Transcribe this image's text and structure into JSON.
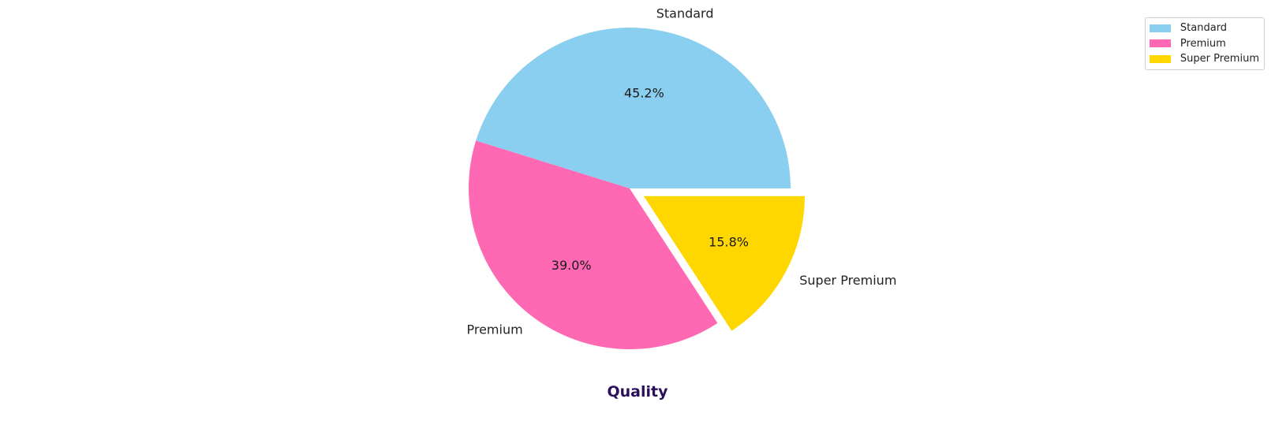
{
  "chart_data": {
    "type": "pie",
    "title": "Quality",
    "title_color": "#2a0f5c",
    "categories": [
      "Standard",
      "Premium",
      "Super Premium"
    ],
    "values": [
      45.2,
      39.0,
      15.8
    ],
    "value_labels": [
      "45.2%",
      "39.0%",
      "15.8%"
    ],
    "colors": [
      "#8ACFEF",
      "#FF69B4",
      "#FFD700"
    ],
    "exploded": [
      false,
      false,
      true
    ],
    "legend": {
      "placement": "top-right",
      "entries": [
        "Standard",
        "Premium",
        "Super Premium"
      ]
    }
  }
}
